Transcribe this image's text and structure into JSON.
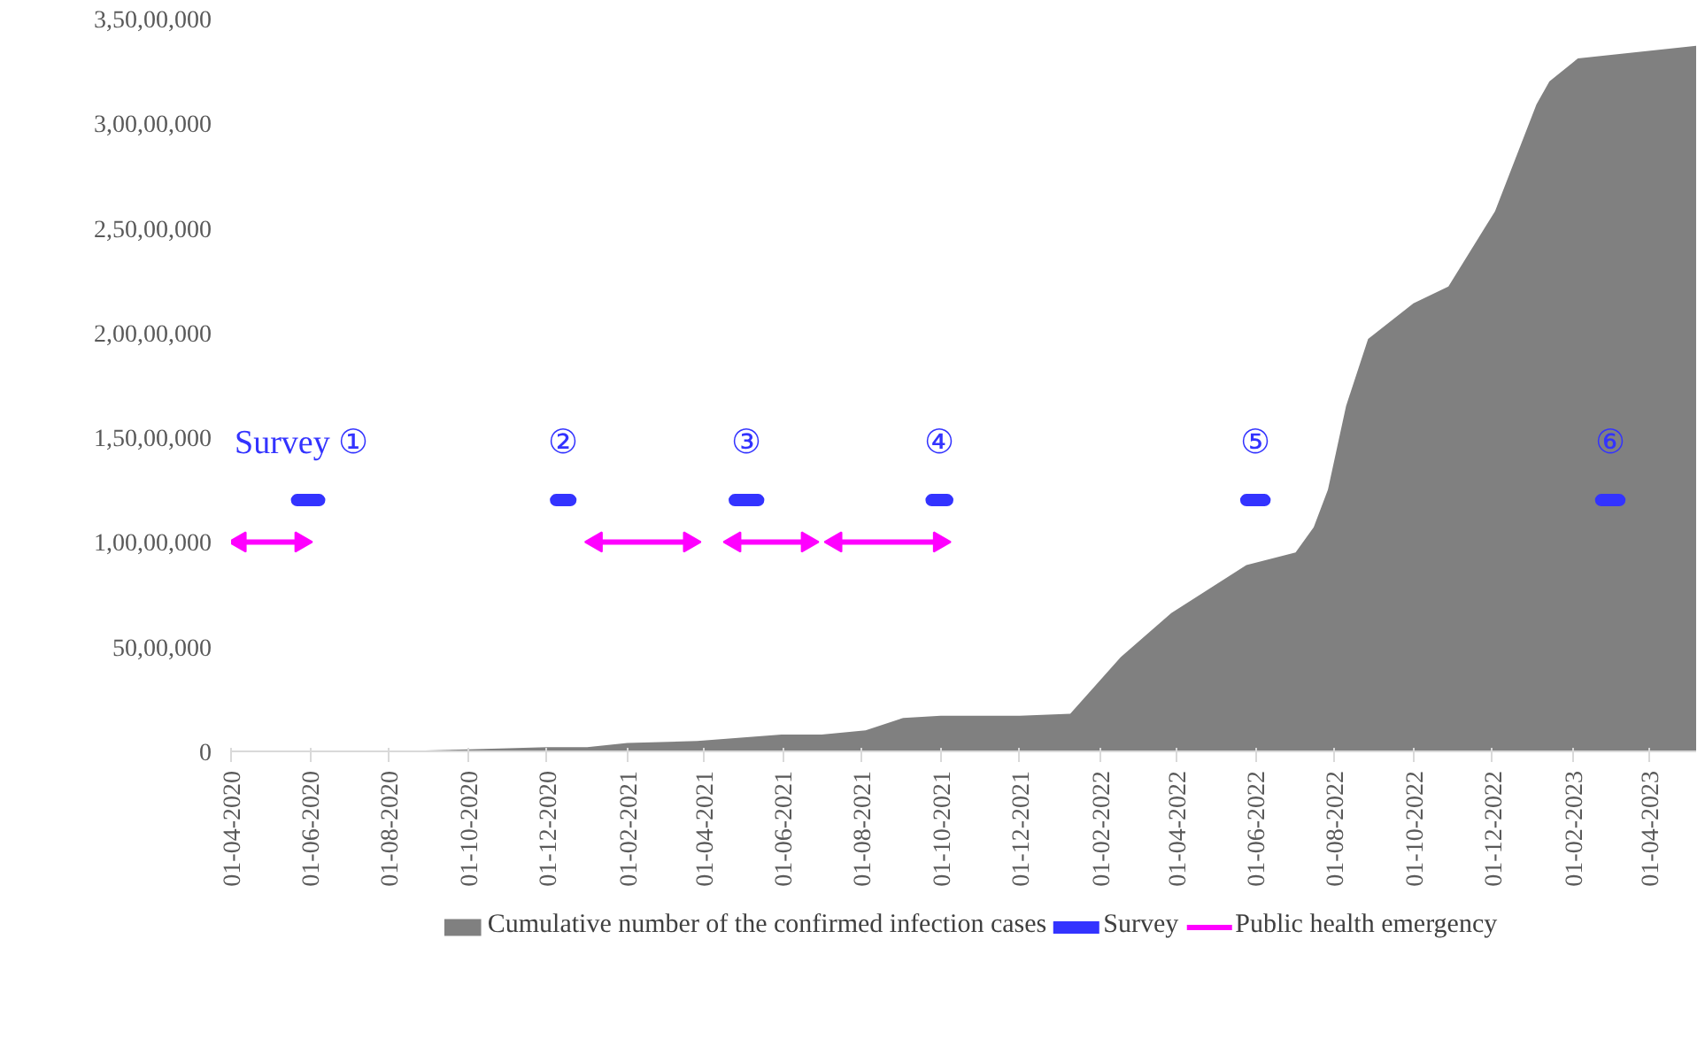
{
  "chart_data": {
    "type": "area",
    "x": [
      "2020-04-01",
      "2020-06-01",
      "2020-08-01",
      "2020-10-01",
      "2020-12-01",
      "2021-01-01",
      "2021-02-01",
      "2021-03-27",
      "2021-05-31",
      "2021-07-01",
      "2021-08-04",
      "2021-09-02",
      "2021-10-01",
      "2021-12-01",
      "2022-01-09",
      "2022-02-17",
      "2022-03-28",
      "2022-05-25",
      "2022-07-02",
      "2022-07-16",
      "2022-07-27",
      "2022-08-10",
      "2022-08-27",
      "2022-10-01",
      "2022-10-28",
      "2022-12-03",
      "2023-01-04",
      "2023-01-14",
      "2023-02-05",
      "2023-05-08"
    ],
    "series": [
      {
        "name": "Cumulative number of the confirmed infection cases",
        "color": "#808080",
        "values": [
          0,
          0,
          0,
          100000,
          200000,
          200000,
          400000,
          500000,
          800000,
          800000,
          1000000,
          1600000,
          1700000,
          1700000,
          1800000,
          4500000,
          6600000,
          8900000,
          9500000,
          10700000,
          12500000,
          16500000,
          19700000,
          21400000,
          22200000,
          25800000,
          30900000,
          32000000,
          33100000,
          33700000
        ]
      },
      {
        "name": "Survey",
        "type": "line",
        "color": "#3333ff",
        "x": [
          "2020-05-22",
          "2020-06-08",
          null,
          "2020-12-08",
          "2020-12-19",
          null,
          "2021-04-25",
          "2021-05-13",
          null,
          "2021-09-24",
          "2021-10-06",
          null,
          "2022-05-25",
          "2022-06-08",
          null,
          "2023-02-23",
          "2023-03-09"
        ],
        "values": [
          12000000,
          12000000,
          null,
          12000000,
          12000000,
          null,
          12000000,
          12000000,
          null,
          12000000,
          12000000,
          null,
          12000000,
          12000000,
          null,
          12000000,
          12000000
        ]
      },
      {
        "name": "Public health emergency",
        "type": "line",
        "marker": "triangle",
        "color": "#ff00ff",
        "x": [
          "2020-04-08",
          "2020-05-25",
          null,
          "2021-01-08",
          "2021-03-21",
          null,
          "2021-04-25",
          "2021-06-20",
          null,
          "2021-07-12",
          "2021-09-30"
        ],
        "values": [
          10000000,
          10000000,
          null,
          10000000,
          10000000,
          null,
          10000000,
          10000000,
          null,
          10000000,
          10000000
        ]
      }
    ],
    "annotations": [
      "Survey ①",
      "②",
      "③",
      "④",
      "⑤",
      "⑥"
    ],
    "xlim": [
      "2020-04-01",
      "2023-05-08"
    ],
    "xticks": [
      {
        "value": "2020-04-01",
        "label": "01-04-2020"
      },
      {
        "value": "2020-06-01",
        "label": "01-06-2020"
      },
      {
        "value": "2020-08-01",
        "label": "01-08-2020"
      },
      {
        "value": "2020-10-01",
        "label": "01-10-2020"
      },
      {
        "value": "2020-12-01",
        "label": "01-12-2020"
      },
      {
        "value": "2021-02-01",
        "label": "01-02-2021"
      },
      {
        "value": "2021-04-01",
        "label": "01-04-2021"
      },
      {
        "value": "2021-06-01",
        "label": "01-06-2021"
      },
      {
        "value": "2021-08-01",
        "label": "01-08-2021"
      },
      {
        "value": "2021-10-01",
        "label": "01-10-2021"
      },
      {
        "value": "2021-12-01",
        "label": "01-12-2021"
      },
      {
        "value": "2022-02-01",
        "label": "01-02-2022"
      },
      {
        "value": "2022-04-01",
        "label": "01-04-2022"
      },
      {
        "value": "2022-06-01",
        "label": "01-06-2022"
      },
      {
        "value": "2022-08-01",
        "label": "01-08-2022"
      },
      {
        "value": "2022-10-01",
        "label": "01-10-2022"
      },
      {
        "value": "2022-12-01",
        "label": "01-12-2022"
      },
      {
        "value": "2023-02-01",
        "label": "01-02-2023"
      },
      {
        "value": "2023-04-01",
        "label": "01-04-2023"
      }
    ],
    "ylim": [
      0,
      35000000
    ],
    "yticks": [
      0,
      {
        "value": 5000000,
        "label": "50,00,000"
      },
      {
        "value": 10000000,
        "label": "1,00,00,000"
      },
      {
        "value": 15000000,
        "label": "1,50,00,000"
      },
      {
        "value": 20000000,
        "label": "2,00,00,000"
      },
      {
        "value": 25000000,
        "label": "2,50,00,000"
      },
      {
        "value": 30000000,
        "label": "3,00,00,000"
      },
      {
        "value": 35000000,
        "label": "3,50,00,000"
      }
    ],
    "grid": false,
    "legend": "bottom"
  }
}
